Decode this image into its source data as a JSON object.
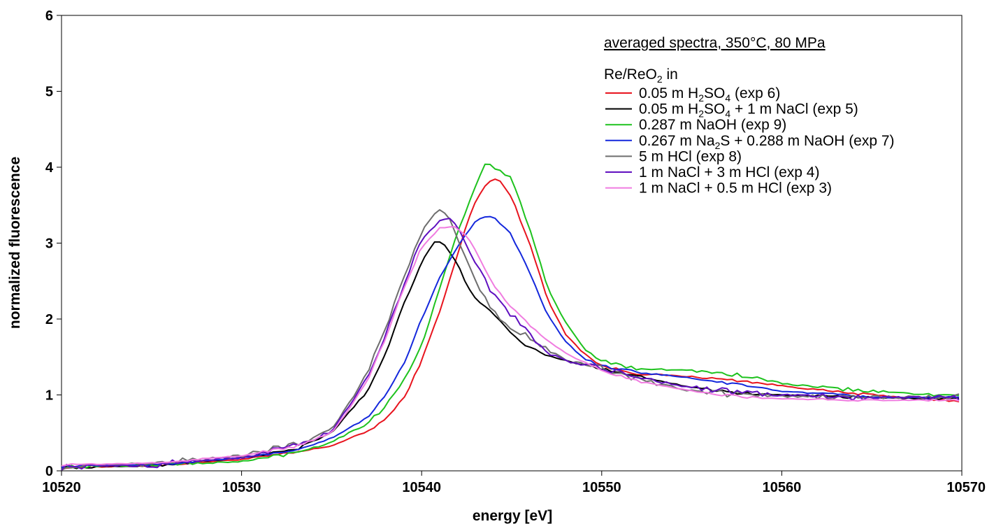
{
  "chart_data": {
    "type": "line",
    "title": "",
    "xlabel": "energy [eV]",
    "ylabel": "normalized fluorescence",
    "xlim": [
      10520,
      10570
    ],
    "ylim": [
      0,
      6
    ],
    "xticks": [
      "10520",
      "10530",
      "10540",
      "10550",
      "10560",
      "10570"
    ],
    "yticks": [
      "0",
      "1",
      "2",
      "3",
      "4",
      "5",
      "6"
    ],
    "grid": false,
    "legend_position": "top-right",
    "annotation": "averaged spectra, 350°C, 80 MPa",
    "legend_title": {
      "prefix": "Re/ReO",
      "sub": "2",
      "suffix": " in"
    },
    "series": [
      {
        "name": "0.05 m H2SO4 (exp 6)",
        "label_parts": [
          [
            "t",
            "0.05 m H"
          ],
          [
            "s",
            "2"
          ],
          [
            "t",
            "SO"
          ],
          [
            "s",
            "4"
          ],
          [
            "t",
            " (exp 6)"
          ]
        ],
        "color": "#e8141e",
        "noise": 0.012,
        "points": [
          [
            10520,
            0.04
          ],
          [
            10525,
            0.07
          ],
          [
            10530,
            0.15
          ],
          [
            10533,
            0.24
          ],
          [
            10535,
            0.33
          ],
          [
            10537,
            0.52
          ],
          [
            10538,
            0.68
          ],
          [
            10539,
            0.95
          ],
          [
            10540,
            1.45
          ],
          [
            10541,
            2.1
          ],
          [
            10542,
            2.85
          ],
          [
            10542.5,
            3.25
          ],
          [
            10543,
            3.55
          ],
          [
            10543.5,
            3.75
          ],
          [
            10544,
            3.84
          ],
          [
            10544.3,
            3.85
          ],
          [
            10545,
            3.6
          ],
          [
            10546,
            3.0
          ],
          [
            10547,
            2.25
          ],
          [
            10548,
            1.8
          ],
          [
            10549,
            1.55
          ],
          [
            10550,
            1.38
          ],
          [
            10552,
            1.28
          ],
          [
            10555,
            1.24
          ],
          [
            10558,
            1.18
          ],
          [
            10560,
            1.12
          ],
          [
            10563,
            1.04
          ],
          [
            10565,
            1.0
          ],
          [
            10570,
            0.91
          ]
        ]
      },
      {
        "name": "0.05 m H2SO4 + 1 m NaCl (exp 5)",
        "label_parts": [
          [
            "t",
            "0.05 m H"
          ],
          [
            "s",
            "2"
          ],
          [
            "t",
            "SO"
          ],
          [
            "s",
            "4"
          ],
          [
            "t",
            " + 1 m NaCl (exp 5)"
          ]
        ],
        "color": "#000000",
        "noise": 0.015,
        "points": [
          [
            10520,
            0.04
          ],
          [
            10525,
            0.07
          ],
          [
            10530,
            0.17
          ],
          [
            10533,
            0.28
          ],
          [
            10535,
            0.5
          ],
          [
            10536,
            0.78
          ],
          [
            10537,
            1.05
          ],
          [
            10538,
            1.55
          ],
          [
            10539,
            2.2
          ],
          [
            10540,
            2.75
          ],
          [
            10540.7,
            3.02
          ],
          [
            10541.2,
            3.0
          ],
          [
            10542,
            2.72
          ],
          [
            10542.5,
            2.45
          ],
          [
            10543,
            2.28
          ],
          [
            10544,
            2.05
          ],
          [
            10545,
            1.8
          ],
          [
            10546,
            1.62
          ],
          [
            10547,
            1.52
          ],
          [
            10548,
            1.45
          ],
          [
            10550,
            1.35
          ],
          [
            10552,
            1.25
          ],
          [
            10555,
            1.1
          ],
          [
            10558,
            1.02
          ],
          [
            10560,
            1.0
          ],
          [
            10565,
            0.96
          ],
          [
            10570,
            0.95
          ]
        ]
      },
      {
        "name": "0.287 m NaOH (exp 9)",
        "label_parts": [
          [
            "t",
            "0.287 m NaOH (exp 9)"
          ]
        ],
        "color": "#1ec21e",
        "noise": 0.018,
        "points": [
          [
            10520,
            0.05
          ],
          [
            10525,
            0.08
          ],
          [
            10530,
            0.12
          ],
          [
            10533,
            0.24
          ],
          [
            10535,
            0.38
          ],
          [
            10537,
            0.63
          ],
          [
            10538,
            0.85
          ],
          [
            10539,
            1.2
          ],
          [
            10540,
            1.65
          ],
          [
            10541,
            2.4
          ],
          [
            10542,
            3.15
          ],
          [
            10543,
            3.75
          ],
          [
            10543.5,
            4.02
          ],
          [
            10544,
            4.01
          ],
          [
            10545,
            3.85
          ],
          [
            10546,
            3.2
          ],
          [
            10547,
            2.4
          ],
          [
            10548,
            1.95
          ],
          [
            10549,
            1.62
          ],
          [
            10550,
            1.45
          ],
          [
            10552,
            1.35
          ],
          [
            10555,
            1.32
          ],
          [
            10558,
            1.25
          ],
          [
            10560,
            1.15
          ],
          [
            10563,
            1.08
          ],
          [
            10565,
            1.05
          ],
          [
            10570,
            0.98
          ]
        ]
      },
      {
        "name": "0.267 m Na2S + 0.288 m NaOH (exp 7)",
        "label_parts": [
          [
            "t",
            "0.267 m Na"
          ],
          [
            "s",
            "2"
          ],
          [
            "t",
            "S + 0.288 m NaOH (exp 7)"
          ]
        ],
        "color": "#1428dc",
        "noise": 0.012,
        "points": [
          [
            10520,
            0.06
          ],
          [
            10525,
            0.08
          ],
          [
            10530,
            0.17
          ],
          [
            10533,
            0.26
          ],
          [
            10535,
            0.43
          ],
          [
            10537,
            0.7
          ],
          [
            10538,
            1.0
          ],
          [
            10539,
            1.4
          ],
          [
            10540,
            2.0
          ],
          [
            10541,
            2.55
          ],
          [
            10542,
            2.95
          ],
          [
            10543,
            3.3
          ],
          [
            10543.7,
            3.37
          ],
          [
            10544,
            3.35
          ],
          [
            10545,
            3.1
          ],
          [
            10546,
            2.6
          ],
          [
            10547,
            2.05
          ],
          [
            10548,
            1.7
          ],
          [
            10549,
            1.48
          ],
          [
            10550,
            1.38
          ],
          [
            10552,
            1.3
          ],
          [
            10555,
            1.22
          ],
          [
            10558,
            1.12
          ],
          [
            10560,
            1.05
          ],
          [
            10565,
            0.97
          ],
          [
            10570,
            0.96
          ]
        ]
      },
      {
        "name": "5 m HCl (exp 8)",
        "label_parts": [
          [
            "t",
            "5 m HCl (exp 8)"
          ]
        ],
        "color": "#6e6e6e",
        "noise": 0.03,
        "points": [
          [
            10520,
            0.05
          ],
          [
            10525,
            0.09
          ],
          [
            10530,
            0.2
          ],
          [
            10533,
            0.35
          ],
          [
            10535,
            0.55
          ],
          [
            10536,
            0.9
          ],
          [
            10537,
            1.3
          ],
          [
            10538,
            1.9
          ],
          [
            10539,
            2.55
          ],
          [
            10540,
            3.15
          ],
          [
            10541,
            3.45
          ],
          [
            10541.5,
            3.35
          ],
          [
            10542,
            3.05
          ],
          [
            10543,
            2.5
          ],
          [
            10544,
            2.1
          ],
          [
            10545,
            1.9
          ],
          [
            10546,
            1.75
          ],
          [
            10547,
            1.6
          ],
          [
            10548,
            1.45
          ],
          [
            10550,
            1.35
          ],
          [
            10552,
            1.2
          ],
          [
            10555,
            1.05
          ],
          [
            10558,
            1.0
          ],
          [
            10560,
            0.98
          ],
          [
            10565,
            0.97
          ],
          [
            10570,
            0.97
          ]
        ]
      },
      {
        "name": "1 m NaCl + 3 m HCl (exp 4)",
        "label_parts": [
          [
            "t",
            "1 m NaCl + 3 m HCl (exp 4)"
          ]
        ],
        "color": "#6010c0",
        "noise": 0.03,
        "points": [
          [
            10520,
            0.05
          ],
          [
            10525,
            0.08
          ],
          [
            10530,
            0.18
          ],
          [
            10533,
            0.32
          ],
          [
            10535,
            0.52
          ],
          [
            10536,
            0.85
          ],
          [
            10537,
            1.25
          ],
          [
            10538,
            1.8
          ],
          [
            10539,
            2.45
          ],
          [
            10540,
            3.05
          ],
          [
            10541,
            3.28
          ],
          [
            10541.6,
            3.33
          ],
          [
            10542,
            3.2
          ],
          [
            10543,
            2.75
          ],
          [
            10544,
            2.3
          ],
          [
            10545,
            2.05
          ],
          [
            10546,
            1.8
          ],
          [
            10547,
            1.55
          ],
          [
            10548,
            1.45
          ],
          [
            10550,
            1.35
          ],
          [
            10552,
            1.23
          ],
          [
            10555,
            1.1
          ],
          [
            10558,
            1.02
          ],
          [
            10560,
            1.0
          ],
          [
            10565,
            0.97
          ],
          [
            10570,
            0.97
          ]
        ]
      },
      {
        "name": "1 m NaCl + 0.5 m HCl (exp 3)",
        "label_parts": [
          [
            "t",
            "1 m NaCl + 0.5 m HCl (exp 3)"
          ]
        ],
        "color": "#f07ce0",
        "noise": 0.012,
        "points": [
          [
            10520,
            0.08
          ],
          [
            10525,
            0.1
          ],
          [
            10530,
            0.2
          ],
          [
            10533,
            0.32
          ],
          [
            10535,
            0.5
          ],
          [
            10536,
            0.82
          ],
          [
            10537,
            1.2
          ],
          [
            10538,
            1.75
          ],
          [
            10539,
            2.4
          ],
          [
            10540,
            2.95
          ],
          [
            10541,
            3.2
          ],
          [
            10541.8,
            3.22
          ],
          [
            10542.5,
            3.1
          ],
          [
            10543,
            2.9
          ],
          [
            10544,
            2.45
          ],
          [
            10545,
            2.15
          ],
          [
            10546,
            1.92
          ],
          [
            10547,
            1.72
          ],
          [
            10548,
            1.55
          ],
          [
            10550,
            1.32
          ],
          [
            10552,
            1.18
          ],
          [
            10555,
            1.05
          ],
          [
            10558,
            0.97
          ],
          [
            10560,
            0.95
          ],
          [
            10565,
            0.93
          ],
          [
            10570,
            0.93
          ]
        ]
      }
    ]
  }
}
